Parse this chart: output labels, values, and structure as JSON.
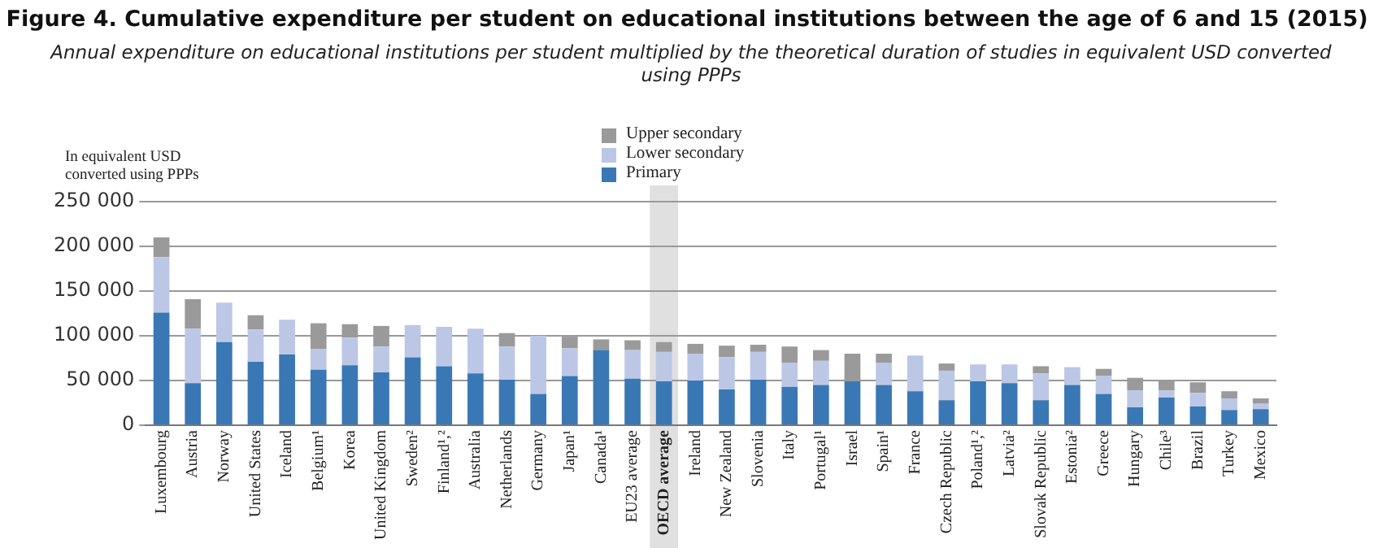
{
  "chart_data": {
    "type": "bar",
    "stacked": true,
    "title": "Figure 4. Cumulative expenditure per student on educational institutions between the age of 6 and 15 (2015)",
    "subtitle": "Annual expenditure on educational institutions per student multiplied by the theoretical duration of studies in equivalent USD converted using PPPs",
    "ylabel": "In equivalent USD converted using PPPs",
    "categories": [
      "Luxembourg",
      "Austria",
      "Norway",
      "United States",
      "Iceland",
      "Belgium¹",
      "Korea",
      "United Kingdom",
      "Sweden²",
      "Finland¹,²",
      "Australia",
      "Netherlands",
      "Germany",
      "Japan¹",
      "Canada¹",
      "EU23 average",
      "OECD average",
      "Ireland",
      "New Zealand",
      "Slovenia",
      "Italy",
      "Portugal¹",
      "Israel",
      "Spain¹",
      "France",
      "Czech Republic",
      "Poland¹,²",
      "Latvia²",
      "Slovak Republic",
      "Estonia²",
      "Greece",
      "Hungary",
      "Chile³",
      "Brazil",
      "Turkey",
      "Mexico"
    ],
    "series": [
      {
        "name": "Primary",
        "color": "#3a78b5",
        "values": [
          126000,
          47000,
          93000,
          71000,
          79000,
          62000,
          67000,
          59000,
          76000,
          66000,
          58000,
          51000,
          35000,
          55000,
          84000,
          52000,
          49000,
          50000,
          40000,
          51000,
          43000,
          45000,
          49000,
          45000,
          38000,
          28000,
          49000,
          47000,
          28000,
          45000,
          35000,
          20000,
          31000,
          21000,
          17000,
          18000
        ]
      },
      {
        "name": "Lower secondary",
        "color": "#bcc7e6",
        "values": [
          62000,
          61000,
          44000,
          36000,
          39000,
          23000,
          31000,
          29000,
          36000,
          44000,
          50000,
          37000,
          65000,
          31000,
          0,
          32000,
          33000,
          30000,
          36000,
          31000,
          27000,
          27000,
          0,
          25000,
          40000,
          33000,
          19000,
          21000,
          30000,
          20000,
          20000,
          19000,
          8000,
          15000,
          13000,
          6000
        ]
      },
      {
        "name": "Upper secondary",
        "color": "#9a9a9a",
        "values": [
          22000,
          33000,
          0,
          16000,
          0,
          29000,
          15000,
          23000,
          0,
          0,
          0,
          15000,
          0,
          13000,
          12000,
          11000,
          11000,
          11000,
          13000,
          8000,
          18000,
          12000,
          31000,
          10000,
          0,
          8000,
          0,
          0,
          8000,
          0,
          8000,
          14000,
          11000,
          12000,
          8000,
          6000
        ]
      }
    ],
    "ylim": [
      0,
      250000
    ],
    "yticks": [
      {
        "value": 0,
        "label": "0"
      },
      {
        "value": 50000,
        "label": "50 000"
      },
      {
        "value": 100000,
        "label": "100 000"
      },
      {
        "value": 150000,
        "label": "150 000"
      },
      {
        "value": 200000,
        "label": "200 000"
      },
      {
        "value": 250000,
        "label": "250 000"
      }
    ],
    "grid": "y",
    "legend": "top",
    "bands": [
      {
        "axis": "x",
        "from": "OECD average",
        "to": "OECD average",
        "color": "#e0e0e0"
      }
    ]
  }
}
